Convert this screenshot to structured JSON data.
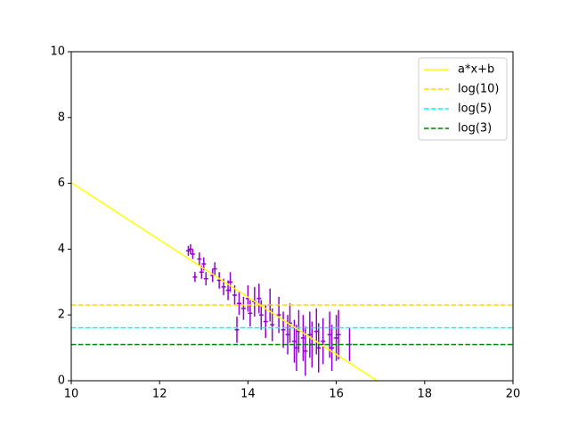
{
  "chart_data": {
    "type": "errorbar",
    "xlim": [
      10,
      20
    ],
    "xticks": [
      10,
      12,
      14,
      16,
      18,
      20
    ],
    "ylim": [
      0,
      10
    ],
    "yticks": [
      0,
      2,
      4,
      6,
      8,
      10
    ],
    "grid": false,
    "legend": "upper right",
    "errorbars": {
      "color": "#9400d3",
      "xerr": 0.05,
      "x": [
        12.65,
        12.7,
        12.75,
        12.8,
        12.9,
        12.95,
        13.0,
        13.05,
        13.2,
        13.25,
        13.35,
        13.45,
        13.55,
        13.6,
        13.7,
        13.75,
        13.8,
        13.9,
        14.0,
        14.05,
        14.15,
        14.25,
        14.3,
        14.4,
        14.5,
        14.55,
        14.7,
        14.8,
        14.9,
        14.95,
        15.05,
        15.1,
        15.15,
        15.25,
        15.3,
        15.4,
        15.45,
        15.55,
        15.6,
        15.7,
        15.85,
        15.9,
        16.0,
        16.05,
        16.3
      ],
      "values": [
        3.95,
        4.0,
        3.85,
        3.15,
        3.7,
        3.3,
        3.55,
        3.1,
        3.2,
        3.4,
        3.05,
        2.85,
        2.75,
        3.0,
        2.6,
        1.55,
        2.35,
        2.2,
        2.5,
        2.05,
        2.4,
        2.5,
        2.0,
        1.8,
        2.3,
        1.7,
        2.0,
        1.55,
        1.4,
        1.75,
        1.2,
        1.0,
        1.5,
        1.3,
        0.9,
        1.4,
        1.1,
        1.5,
        1.0,
        1.2,
        1.4,
        1.0,
        1.3,
        1.4,
        1.1
      ],
      "yerr": [
        0.15,
        0.15,
        0.15,
        0.15,
        0.2,
        0.2,
        0.2,
        0.2,
        0.2,
        0.2,
        0.25,
        0.25,
        0.3,
        0.3,
        0.3,
        0.4,
        0.35,
        0.35,
        0.4,
        0.4,
        0.45,
        0.45,
        0.45,
        0.5,
        0.5,
        0.5,
        0.55,
        0.55,
        0.6,
        0.6,
        0.65,
        0.7,
        0.65,
        0.7,
        0.75,
        0.7,
        0.7,
        0.7,
        0.75,
        0.7,
        0.7,
        0.7,
        0.7,
        0.75,
        0.5
      ]
    },
    "series": [
      {
        "name": "a*x+b",
        "color": "#ffff00",
        "x": [
          10,
          16.92
        ],
        "values": [
          6.02,
          0
        ]
      }
    ],
    "hlines": [
      {
        "name": "log(10)",
        "color": "#ffd700",
        "value": 2.303
      },
      {
        "name": "log(5)",
        "color": "#00ffff",
        "value": 1.609
      },
      {
        "name": "log(3)",
        "color": "#008000",
        "value": 1.099
      }
    ]
  }
}
